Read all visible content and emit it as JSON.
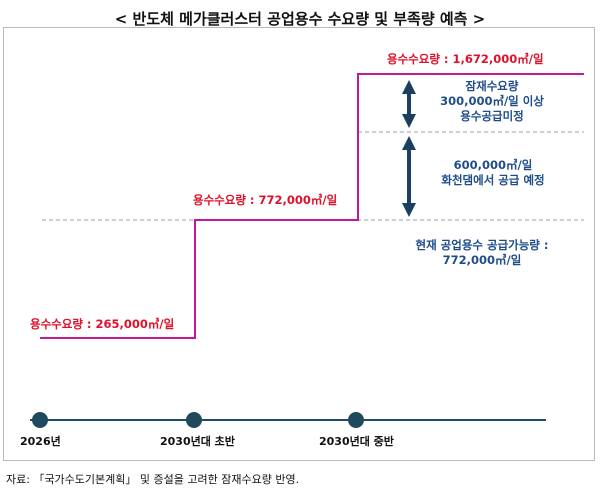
{
  "title": "< 반도체 메가클러스터 공업용수 수요량 및 부족량 예측 >",
  "demand_labels": {
    "year_2026": "용수수요량 : 265,000㎥/일",
    "early_2030s": "용수수요량 : 772,000㎥/일",
    "mid_2030s": "용수수요량 : 1,672,000㎥/일"
  },
  "annotations": {
    "latent_demand": [
      "잠재수요량",
      "300,000㎥/일 이상",
      "용수공급미정"
    ],
    "hwacheon_dam": [
      "600,000㎥/일",
      "화천댐에서 공급 예정"
    ],
    "current_supply": [
      "현재 공업용수 공급가능량 :",
      "772,000㎥/일"
    ]
  },
  "timeline": {
    "points": [
      "2026년",
      "2030년대 초반",
      "2030년대 중반"
    ]
  },
  "source": "자료: 「국가수도기본계획」 및 증설을 고려한 잠재수요량 반영.",
  "colors": {
    "step_line": "#c2189b",
    "red_text": "#e0102a",
    "blue_text": "#1f4d8a",
    "arrow": "#1b3f5e",
    "dashed": "#8fa3b5",
    "timeline_line": "#1e4c66",
    "timeline_dot": "#1f4a5e"
  }
}
